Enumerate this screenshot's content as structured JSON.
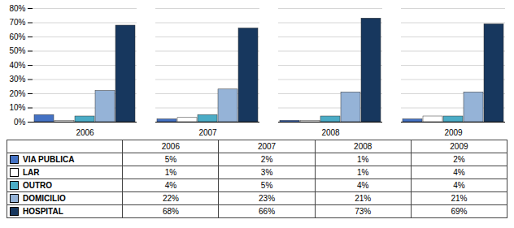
{
  "chart_data": {
    "type": "bar",
    "categories": [
      "2006",
      "2007",
      "2008",
      "2009"
    ],
    "series": [
      {
        "name": "VIA PUBLICA",
        "color": "#4472C4",
        "values": [
          5,
          2,
          1,
          2
        ],
        "value_labels": [
          "5%",
          "2%",
          "1%",
          "2%"
        ]
      },
      {
        "name": "LAR",
        "color": "#FFFFFF",
        "values": [
          1,
          3,
          1,
          4
        ],
        "value_labels": [
          "1%",
          "3%",
          "1%",
          "4%"
        ]
      },
      {
        "name": "OUTRO",
        "color": "#4BACC6",
        "values": [
          4,
          5,
          4,
          4
        ],
        "value_labels": [
          "4%",
          "5%",
          "4%",
          "4%"
        ]
      },
      {
        "name": "DOMICILIO",
        "color": "#95B3D7",
        "values": [
          22,
          23,
          21,
          21
        ],
        "value_labels": [
          "22%",
          "23%",
          "21%",
          "21%"
        ]
      },
      {
        "name": "HOSPITAL",
        "color": "#17375E",
        "values": [
          68,
          66,
          73,
          69
        ],
        "value_labels": [
          "68%",
          "66%",
          "73%",
          "69%"
        ]
      }
    ],
    "ylim": [
      0,
      80
    ],
    "yticks": [
      {
        "value": 0,
        "label": "0%"
      },
      {
        "value": 10,
        "label": "10%"
      },
      {
        "value": 20,
        "label": "20%"
      },
      {
        "value": 30,
        "label": "30%"
      },
      {
        "value": 40,
        "label": "40%"
      },
      {
        "value": 50,
        "label": "50%"
      },
      {
        "value": 60,
        "label": "60%"
      },
      {
        "value": 70,
        "label": "70%"
      },
      {
        "value": 80,
        "label": "80%"
      }
    ],
    "grid": true
  }
}
